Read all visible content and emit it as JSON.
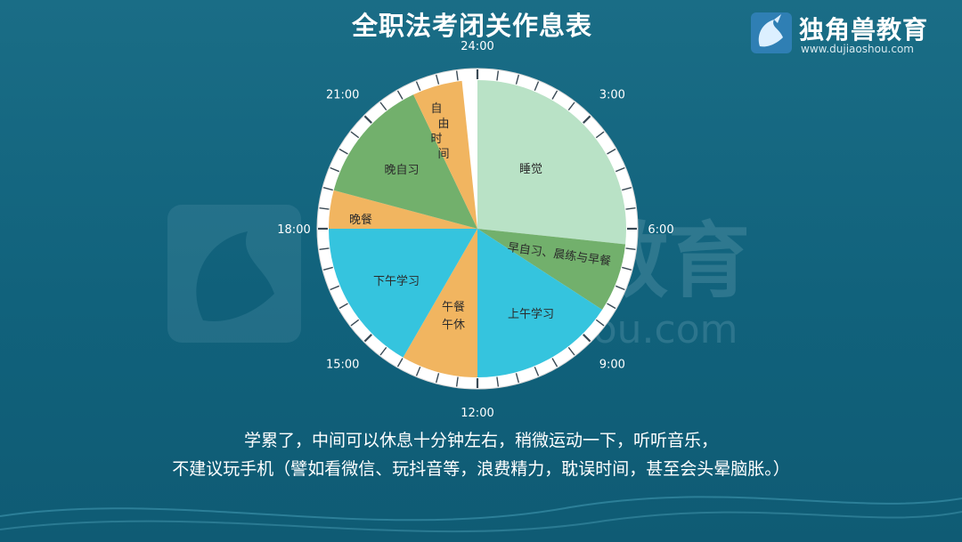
{
  "title": "全职法考闭关作息表",
  "brand": {
    "name": "独角兽教育",
    "url": "www.dujiaoshou.com",
    "watermark_name": "教育",
    "watermark_url": "oshou.com"
  },
  "chart_data": {
    "type": "pie",
    "title": "全职法考闭关作息表",
    "unit": "hours",
    "clock": {
      "total_hours": 24,
      "start_at_top": "24:00",
      "direction": "clockwise"
    },
    "tick_labels": [
      "24:00",
      "3:00",
      "6:00",
      "9:00",
      "12:00",
      "15:00",
      "18:00",
      "21:00"
    ],
    "slices": [
      {
        "label": "睡觉",
        "start": 0.0,
        "end": 6.4,
        "color": "#b9e2c6"
      },
      {
        "label": "早自习、晨练与早餐",
        "start": 6.4,
        "end": 8.2,
        "color": "#72b06c"
      },
      {
        "label": "上午学习",
        "start": 8.2,
        "end": 12.0,
        "color": "#35c4de"
      },
      {
        "label": "午餐\n午休",
        "start": 12.0,
        "end": 14.0,
        "color": "#f1b560"
      },
      {
        "label": "下午学习",
        "start": 14.0,
        "end": 18.0,
        "color": "#35c4de"
      },
      {
        "label": "晚餐",
        "start": 18.0,
        "end": 19.0,
        "color": "#f1b560"
      },
      {
        "label": "晚自习",
        "start": 19.0,
        "end": 22.3,
        "color": "#72b06c"
      },
      {
        "label": "自由\n时间",
        "start": 22.3,
        "end": 23.6,
        "color": "#f1b560"
      }
    ]
  },
  "caption": {
    "line1": "学累了，中间可以休息十分钟左右，稍微运动一下，听听音乐，",
    "line2": "不建议玩手机（譬如看微信、玩抖音等，浪费精力，耽误时间，甚至会头晕脑胀。）"
  },
  "colors": {
    "background": "#11627c",
    "ring": "#ffffff",
    "ring_tick": "#3a4a55",
    "text_dark": "#2b2b2b"
  }
}
